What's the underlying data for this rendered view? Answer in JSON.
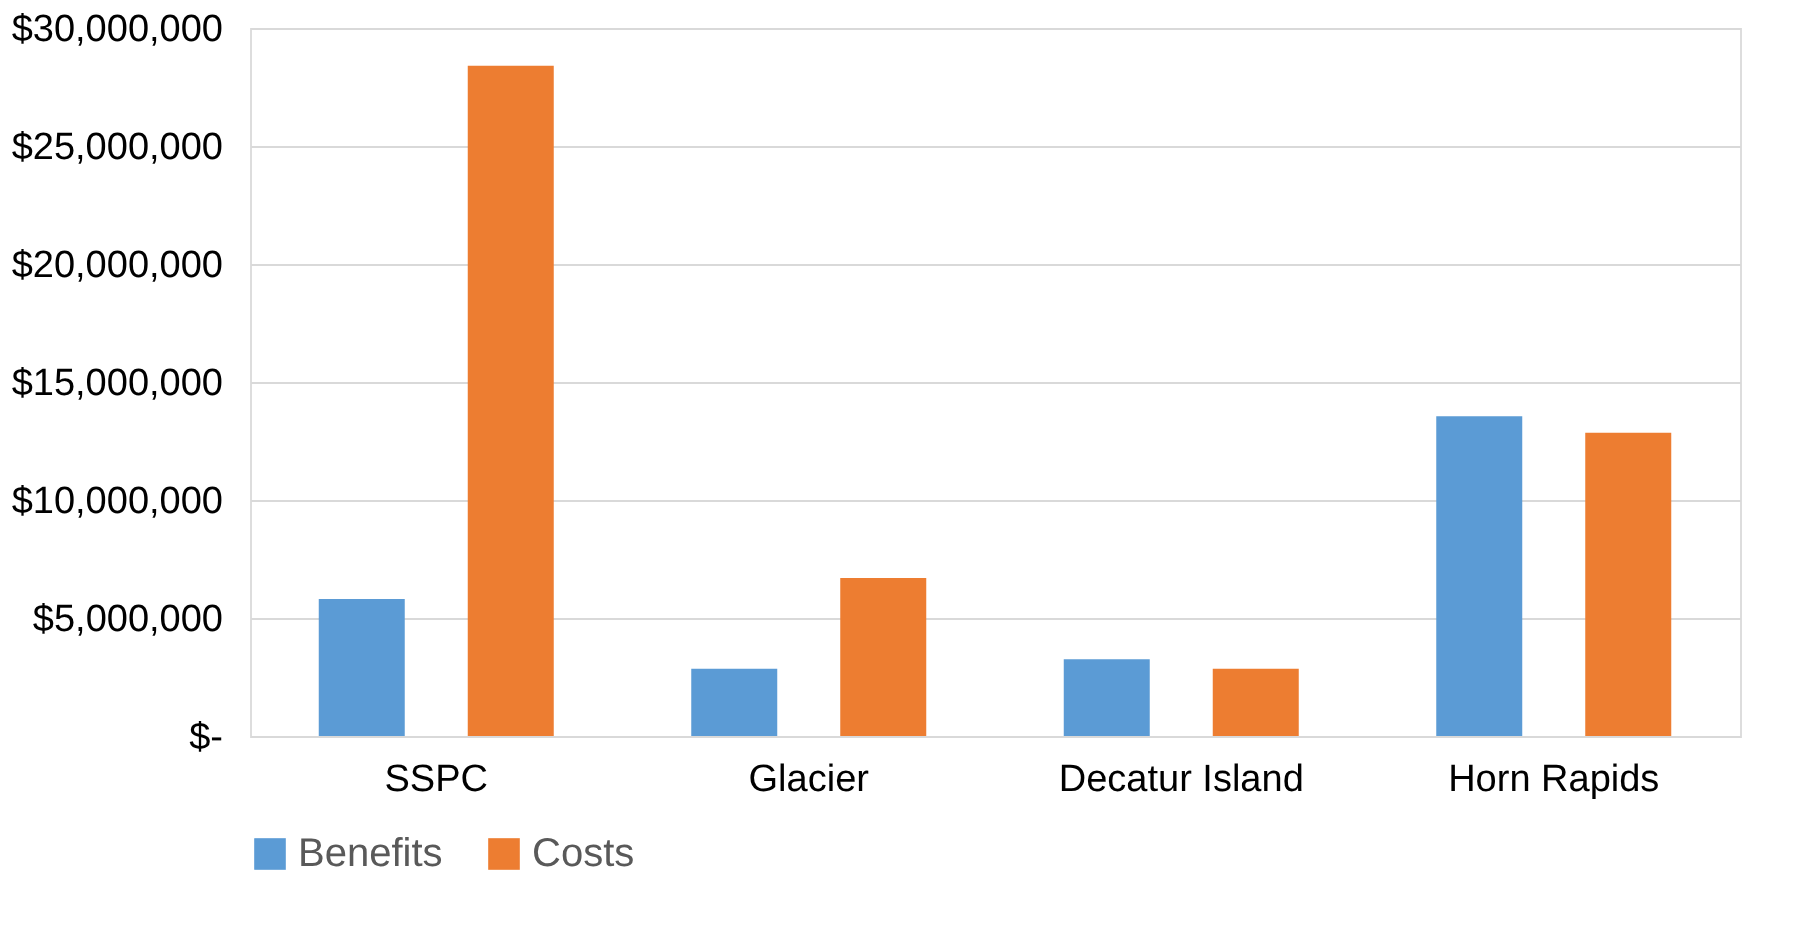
{
  "chart_data": {
    "type": "bar",
    "categories": [
      "SSPC",
      "Glacier",
      "Decatur Island",
      "Horn Rapids"
    ],
    "series": [
      {
        "name": "Benefits",
        "color": "#5b9bd5",
        "values": [
          5800000,
          2850000,
          3250000,
          13550000
        ]
      },
      {
        "name": "Costs",
        "color": "#ed7d31",
        "values": [
          28400000,
          6700000,
          2850000,
          12850000
        ]
      }
    ],
    "ylim": [
      0,
      30000000
    ],
    "yticks": [
      {
        "value": 0,
        "label": "$-"
      },
      {
        "value": 5000000,
        "label": "$5,000,000"
      },
      {
        "value": 10000000,
        "label": "$10,000,000"
      },
      {
        "value": 15000000,
        "label": "$15,000,000"
      },
      {
        "value": 20000000,
        "label": "$20,000,000"
      },
      {
        "value": 25000000,
        "label": "$25,000,000"
      },
      {
        "value": 30000000,
        "label": "$30,000,000"
      }
    ],
    "grid": "y",
    "legend": "bottom"
  }
}
